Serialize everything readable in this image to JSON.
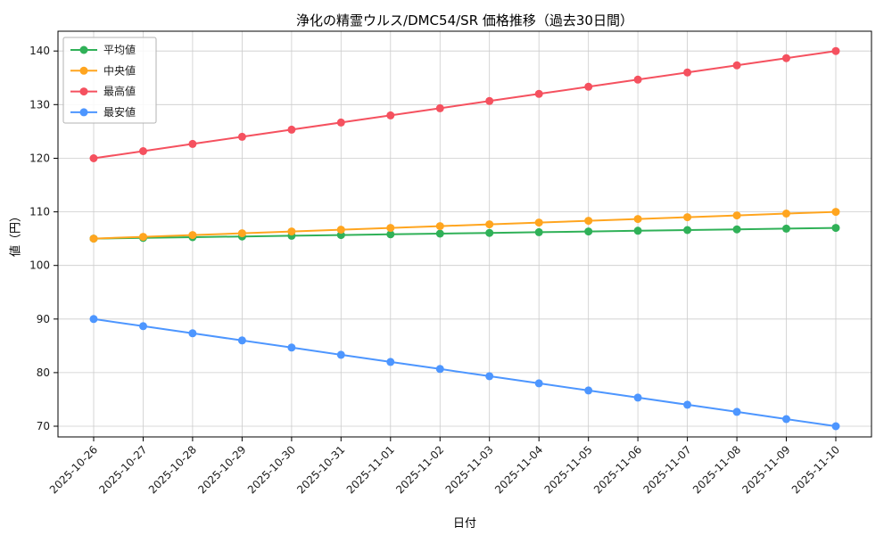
{
  "chart_data": {
    "type": "line",
    "title": "浄化の精霊ウルス/DMC54/SR 価格推移（過去30日間）",
    "xlabel": "日付",
    "ylabel": "値（円）",
    "x": [
      "2025-10-26",
      "2025-10-27",
      "2025-10-28",
      "2025-10-29",
      "2025-10-30",
      "2025-10-31",
      "2025-11-01",
      "2025-11-02",
      "2025-11-03",
      "2025-11-04",
      "2025-11-05",
      "2025-11-06",
      "2025-11-07",
      "2025-11-08",
      "2025-11-09",
      "2025-11-10"
    ],
    "yticks": [
      70,
      80,
      90,
      100,
      110,
      120,
      130,
      140
    ],
    "ylim": [
      68,
      143.7
    ],
    "grid": true,
    "legend_position": "upper left",
    "series": [
      {
        "key": "average",
        "name": "平均値",
        "color": "#30b158",
        "values": [
          105.0,
          105.13,
          105.27,
          105.4,
          105.53,
          105.67,
          105.8,
          105.93,
          106.07,
          106.2,
          106.33,
          106.47,
          106.6,
          106.73,
          106.87,
          107.0
        ]
      },
      {
        "key": "median",
        "name": "中央値",
        "color": "#ffa51f",
        "values": [
          105.0,
          105.33,
          105.67,
          106.0,
          106.33,
          106.67,
          107.0,
          107.33,
          107.67,
          108.0,
          108.33,
          108.67,
          109.0,
          109.33,
          109.67,
          110.0
        ]
      },
      {
        "key": "max",
        "name": "最高値",
        "color": "#f5515f",
        "values": [
          120.0,
          121.33,
          122.67,
          124.0,
          125.33,
          126.67,
          128.0,
          129.33,
          130.67,
          132.0,
          133.33,
          134.67,
          136.0,
          137.33,
          138.67,
          140.0
        ]
      },
      {
        "key": "min",
        "name": "最安値",
        "color": "#4d96ff",
        "values": [
          90.0,
          88.67,
          87.33,
          86.0,
          84.67,
          83.33,
          82.0,
          80.67,
          79.33,
          78.0,
          76.67,
          75.33,
          74.0,
          72.67,
          71.33,
          70.0
        ]
      }
    ]
  }
}
